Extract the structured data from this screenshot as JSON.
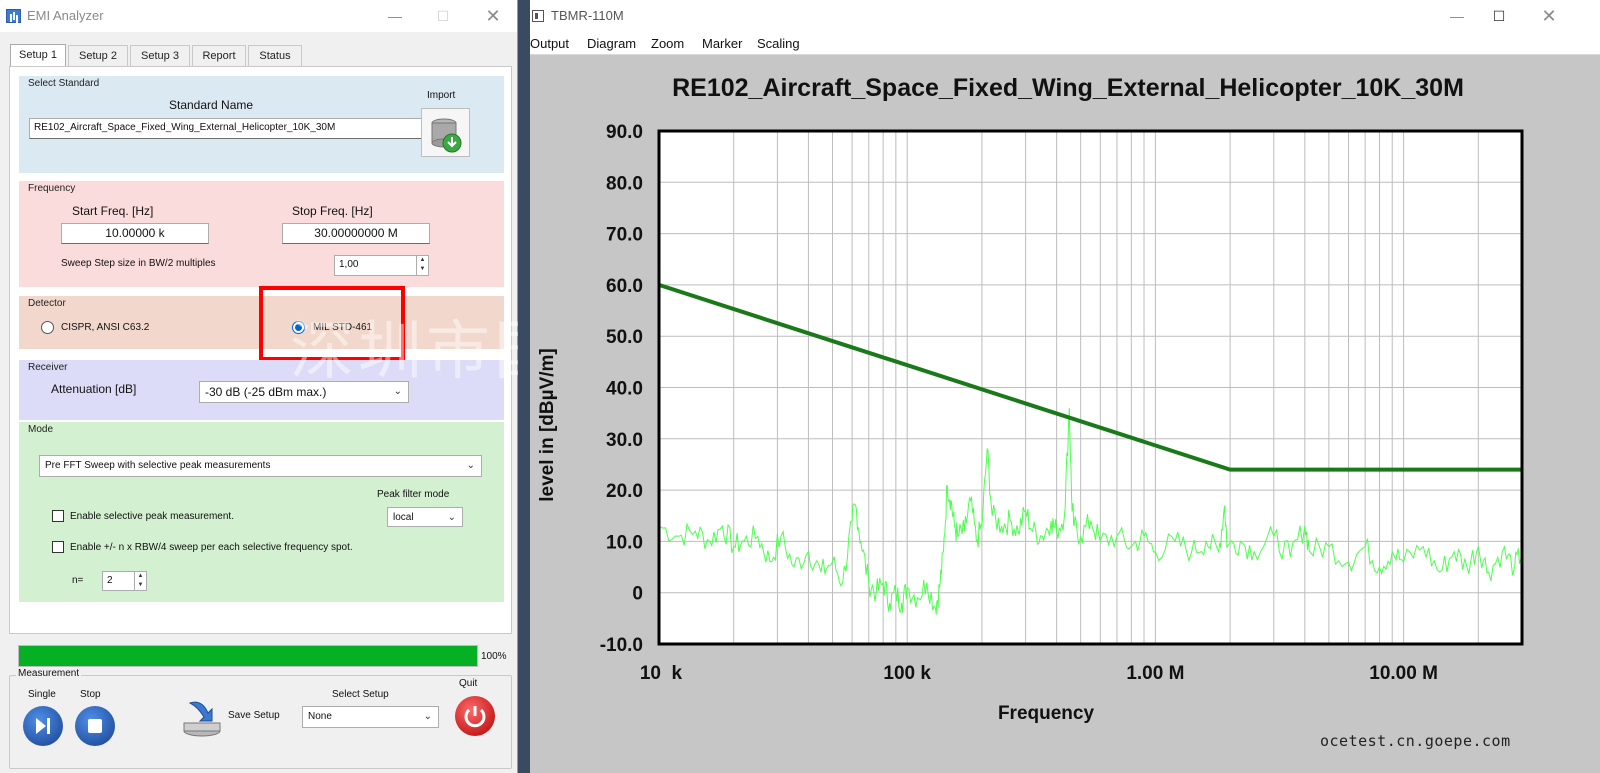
{
  "left_window": {
    "title": "EMI Analyzer",
    "tabs": [
      {
        "label": "Setup 1"
      },
      {
        "label": "Setup 2"
      },
      {
        "label": "Setup 3"
      },
      {
        "label": "Report"
      },
      {
        "label": "Status"
      }
    ],
    "select_standard": {
      "group_title": "Select Standard",
      "name_label": "Standard Name",
      "name_value": "RE102_Aircraft_Space_Fixed_Wing_External_Helicopter_10K_30M",
      "import_label": "Import"
    },
    "frequency": {
      "group_title": "Frequency",
      "start_label": "Start Freq. [Hz]",
      "start_value": "10.00000 k",
      "stop_label": "Stop Freq. [Hz]",
      "stop_value": "30.00000000 M",
      "sweep_label": "Sweep Step size in BW/2 multiples",
      "sweep_value": "1,00"
    },
    "detector": {
      "group_title": "Detector",
      "option_1": "CISPR, ANSI C63.2",
      "option_2": "MIL STD-461",
      "selected": "MIL STD-461"
    },
    "receiver": {
      "group_title": "Receiver",
      "attenuation_label": "Attenuation [dB]",
      "attenuation_value": "-30 dB (-25 dBm max.)"
    },
    "mode": {
      "group_title": "Mode",
      "mode_value": "Pre FFT Sweep with selective peak measurements",
      "peak_filter_label": "Peak filter mode",
      "peak_filter_value": "local",
      "check_1": "Enable selective peak measurement.",
      "check_2": "Enable +/- n x RBW/4 sweep per each selective frequency spot.",
      "n_label": "n=",
      "n_value": "2"
    },
    "progress": {
      "percent": 100,
      "label": "100%"
    },
    "measurement": {
      "group_title": "Measurement",
      "single_label": "Single",
      "stop_label": "Stop",
      "save_label": "Save Setup",
      "select_setup_label": "Select Setup",
      "select_setup_value": "None",
      "quit_label": "Quit"
    }
  },
  "right_window": {
    "title": "TBMR-110M",
    "menu": [
      "Output",
      "Diagram",
      "Zoom",
      "Marker",
      "Scaling"
    ],
    "watermark": "ocetest.cn.goepe.com"
  },
  "chart_data": {
    "type": "line",
    "title": "RE102_Aircraft_Space_Fixed_Wing_External_Helicopter_10K_30M",
    "xlabel": "Frequency",
    "ylabel": "level in [dBµV/m]",
    "x_scale": "log",
    "xlim": [
      10000,
      30000000
    ],
    "ylim": [
      -10,
      90
    ],
    "x_ticks": [
      {
        "value": 10000,
        "label": "10  k"
      },
      {
        "value": 100000,
        "label": "100 k"
      },
      {
        "value": 1000000,
        "label": "1.00 M"
      },
      {
        "value": 10000000,
        "label": "10.00 M"
      }
    ],
    "y_ticks": [
      {
        "value": 90,
        "label": "90.0"
      },
      {
        "value": 80,
        "label": "80.0"
      },
      {
        "value": 70,
        "label": "70.0"
      },
      {
        "value": 60,
        "label": "60.0"
      },
      {
        "value": 50,
        "label": "50.0"
      },
      {
        "value": 40,
        "label": "40.0"
      },
      {
        "value": 30,
        "label": "30.0"
      },
      {
        "value": 20,
        "label": "20.0"
      },
      {
        "value": 10,
        "label": "10.0"
      },
      {
        "value": 0,
        "label": "0"
      },
      {
        "value": -10,
        "label": "-10.0"
      }
    ],
    "grid": true,
    "limit_line": {
      "color": "#1a7a1a",
      "points": [
        [
          10000,
          60
        ],
        [
          2000000,
          24
        ],
        [
          30000000,
          24
        ]
      ]
    },
    "measurement_trace": {
      "color": "#4cff4c",
      "points": [
        [
          10000,
          13
        ],
        [
          12000,
          11
        ],
        [
          14000,
          12
        ],
        [
          16000,
          10
        ],
        [
          18000,
          13
        ],
        [
          20000,
          9
        ],
        [
          22000,
          10
        ],
        [
          25000,
          11
        ],
        [
          28000,
          6
        ],
        [
          31000,
          11
        ],
        [
          35000,
          5
        ],
        [
          40000,
          8
        ],
        [
          45000,
          4
        ],
        [
          50000,
          6
        ],
        [
          55000,
          2
        ],
        [
          60000,
          14
        ],
        [
          62000,
          17
        ],
        [
          65000,
          10
        ],
        [
          70000,
          2
        ],
        [
          75000,
          0
        ],
        [
          80000,
          2
        ],
        [
          85000,
          -2
        ],
        [
          90000,
          0
        ],
        [
          95000,
          -2
        ],
        [
          100000,
          1
        ],
        [
          110000,
          -1
        ],
        [
          120000,
          2
        ],
        [
          130000,
          -3
        ],
        [
          135000,
          1
        ],
        [
          140000,
          8
        ],
        [
          145000,
          21
        ],
        [
          150000,
          18
        ],
        [
          155000,
          13
        ],
        [
          160000,
          11
        ],
        [
          170000,
          12
        ],
        [
          180000,
          18
        ],
        [
          190000,
          10
        ],
        [
          200000,
          13
        ],
        [
          210000,
          28
        ],
        [
          220000,
          15
        ],
        [
          240000,
          13
        ],
        [
          260000,
          14
        ],
        [
          280000,
          12
        ],
        [
          300000,
          16
        ],
        [
          320000,
          12
        ],
        [
          350000,
          11
        ],
        [
          380000,
          14
        ],
        [
          400000,
          12
        ],
        [
          430000,
          15
        ],
        [
          450000,
          36
        ],
        [
          460000,
          18
        ],
        [
          470000,
          13
        ],
        [
          500000,
          11
        ],
        [
          550000,
          14
        ],
        [
          600000,
          10
        ],
        [
          700000,
          11
        ],
        [
          800000,
          9
        ],
        [
          900000,
          11
        ],
        [
          1000000,
          8
        ],
        [
          1200000,
          10
        ],
        [
          1400000,
          8
        ],
        [
          1600000,
          10
        ],
        [
          1800000,
          8
        ],
        [
          1900000,
          17
        ],
        [
          1950000,
          9
        ],
        [
          2200000,
          10
        ],
        [
          2500000,
          8
        ],
        [
          3000000,
          11
        ],
        [
          3500000,
          7
        ],
        [
          4000000,
          13
        ],
        [
          4200000,
          8
        ],
        [
          5000000,
          9
        ],
        [
          6000000,
          6
        ],
        [
          7000000,
          9
        ],
        [
          8000000,
          5
        ],
        [
          9000000,
          8
        ],
        [
          10000000,
          6
        ],
        [
          12000000,
          9
        ],
        [
          14000000,
          4
        ],
        [
          16000000,
          8
        ],
        [
          18000000,
          5
        ],
        [
          20000000,
          9
        ],
        [
          22000000,
          4
        ],
        [
          25000000,
          8
        ],
        [
          28000000,
          5
        ],
        [
          30000000,
          8
        ]
      ]
    }
  }
}
